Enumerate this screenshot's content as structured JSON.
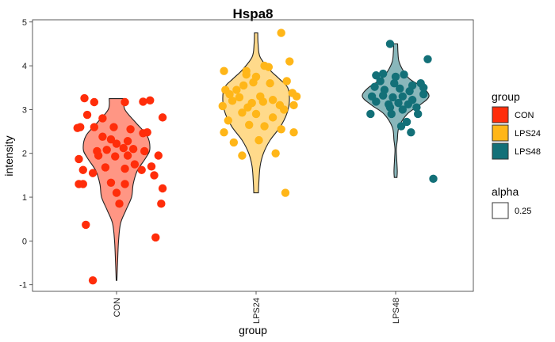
{
  "chart_data": {
    "type": "violin",
    "title": "Hspa8",
    "xlabel": "group",
    "ylabel": "intensity",
    "categories": [
      "CON",
      "LPS24",
      "LPS48"
    ],
    "ylim": [
      -1.15,
      5.05
    ],
    "yticks": [
      -1,
      0,
      1,
      2,
      3,
      4,
      5
    ],
    "grid": false,
    "legend_position": "right",
    "colors": {
      "CON": "#ff2d0a",
      "LPS24": "#ffb618",
      "LPS48": "#137078"
    },
    "violin_alpha": 0.5,
    "series": [
      {
        "name": "CON",
        "violin": {
          "ymin": -0.9,
          "ymax": 3.25,
          "profile": [
            [
              -0.9,
              0.01
            ],
            [
              -0.5,
              0.03
            ],
            [
              0,
              0.06
            ],
            [
              0.4,
              0.12
            ],
            [
              0.7,
              0.28
            ],
            [
              1.0,
              0.45
            ],
            [
              1.3,
              0.5
            ],
            [
              1.6,
              0.62
            ],
            [
              1.9,
              0.88
            ],
            [
              2.1,
              1.0
            ],
            [
              2.4,
              0.92
            ],
            [
              2.7,
              0.58
            ],
            [
              3.0,
              0.25
            ],
            [
              3.25,
              0.22
            ]
          ]
        },
        "points": [
          [
            0.83,
            -0.9
          ],
          [
            0.78,
            0.37
          ],
          [
            1.28,
            0.08
          ],
          [
            0.77,
            3.26
          ],
          [
            0.84,
            3.17
          ],
          [
            1.19,
            3.18
          ],
          [
            1.24,
            3.21
          ],
          [
            1.33,
            2.82
          ],
          [
            1.06,
            3.17
          ],
          [
            0.72,
            2.58
          ],
          [
            0.74,
            2.6
          ],
          [
            0.79,
            2.88
          ],
          [
            0.84,
            2.6
          ],
          [
            0.98,
            2.6
          ],
          [
            1.1,
            2.55
          ],
          [
            1.19,
            2.46
          ],
          [
            1.22,
            2.48
          ],
          [
            0.9,
            2.38
          ],
          [
            0.96,
            2.32
          ],
          [
            1.08,
            2.28
          ],
          [
            1.0,
            2.22
          ],
          [
            0.86,
            2.05
          ],
          [
            0.93,
            2.08
          ],
          [
            1.05,
            2.12
          ],
          [
            1.12,
            2.1
          ],
          [
            1.2,
            2.05
          ],
          [
            0.87,
            1.95
          ],
          [
            0.99,
            1.93
          ],
          [
            1.08,
            1.95
          ],
          [
            1.3,
            1.95
          ],
          [
            0.76,
            1.62
          ],
          [
            0.83,
            1.55
          ],
          [
            0.92,
            1.68
          ],
          [
            1.06,
            1.65
          ],
          [
            1.18,
            1.62
          ],
          [
            1.25,
            1.7
          ],
          [
            0.96,
            1.33
          ],
          [
            1.06,
            1.3
          ],
          [
            1.27,
            1.5
          ],
          [
            1.33,
            1.2
          ],
          [
            0.73,
            1.3
          ],
          [
            0.76,
            1.3
          ],
          [
            1.0,
            1.1
          ],
          [
            1.02,
            0.85
          ],
          [
            1.32,
            0.85
          ],
          [
            0.9,
            2.8
          ],
          [
            0.73,
            1.87
          ],
          [
            1.13,
            1.75
          ]
        ]
      },
      {
        "name": "LPS24",
        "violin": {
          "ymin": 1.1,
          "ymax": 4.75,
          "profile": [
            [
              1.1,
              0.07
            ],
            [
              1.3,
              0.08
            ],
            [
              1.7,
              0.12
            ],
            [
              2.0,
              0.22
            ],
            [
              2.3,
              0.42
            ],
            [
              2.6,
              0.72
            ],
            [
              2.9,
              0.92
            ],
            [
              3.2,
              1.0
            ],
            [
              3.5,
              0.95
            ],
            [
              3.7,
              0.7
            ],
            [
              3.9,
              0.42
            ],
            [
              4.2,
              0.12
            ],
            [
              4.5,
              0.06
            ],
            [
              4.75,
              0.05
            ]
          ]
        },
        "points": [
          [
            1.77,
            3.88
          ],
          [
            1.91,
            3.55
          ],
          [
            1.98,
            3.62
          ],
          [
            2.06,
            4.0
          ],
          [
            2.09,
            3.97
          ],
          [
            2.24,
            4.1
          ],
          [
            2.18,
            4.75
          ],
          [
            1.93,
            3.88
          ],
          [
            1.81,
            3.35
          ],
          [
            1.83,
            3.2
          ],
          [
            1.88,
            3.28
          ],
          [
            1.97,
            3.15
          ],
          [
            2.05,
            3.18
          ],
          [
            2.12,
            3.22
          ],
          [
            2.26,
            3.38
          ],
          [
            2.29,
            3.3
          ],
          [
            1.76,
            3.08
          ],
          [
            1.9,
            2.93
          ],
          [
            2.0,
            2.9
          ],
          [
            2.12,
            2.82
          ],
          [
            2.2,
            3.0
          ],
          [
            2.17,
            3.1
          ],
          [
            1.8,
            2.75
          ],
          [
            1.95,
            2.65
          ],
          [
            2.06,
            2.62
          ],
          [
            2.18,
            2.55
          ],
          [
            2.27,
            2.48
          ],
          [
            1.77,
            2.48
          ],
          [
            1.84,
            2.25
          ],
          [
            2.02,
            2.3
          ],
          [
            2.14,
            2.0
          ],
          [
            1.9,
            1.95
          ],
          [
            2.21,
            1.1
          ],
          [
            1.86,
            3.45
          ],
          [
            2.03,
            3.3
          ],
          [
            2.0,
            3.75
          ],
          [
            1.93,
            3.8
          ],
          [
            2.1,
            3.6
          ],
          [
            2.22,
            3.65
          ],
          [
            1.78,
            3.45
          ],
          [
            2.27,
            3.1
          ],
          [
            1.94,
            3.05
          ]
        ]
      },
      {
        "name": "LPS48",
        "violin": {
          "ymin": 1.45,
          "ymax": 4.5,
          "profile": [
            [
              1.45,
              0.04
            ],
            [
              1.6,
              0.05
            ],
            [
              1.9,
              0.03
            ],
            [
              2.1,
              0.02
            ],
            [
              2.3,
              0.05
            ],
            [
              2.6,
              0.1
            ],
            [
              2.9,
              0.35
            ],
            [
              3.1,
              0.72
            ],
            [
              3.3,
              1.0
            ],
            [
              3.5,
              0.82
            ],
            [
              3.7,
              0.42
            ],
            [
              3.9,
              0.22
            ],
            [
              4.1,
              0.1
            ],
            [
              4.3,
              0.07
            ],
            [
              4.5,
              0.06
            ]
          ]
        },
        "points": [
          [
            2.96,
            4.5
          ],
          [
            3.23,
            4.15
          ],
          [
            3.27,
            1.42
          ],
          [
            2.86,
            3.78
          ],
          [
            2.91,
            3.82
          ],
          [
            3.0,
            3.75
          ],
          [
            3.06,
            3.8
          ],
          [
            3.12,
            3.55
          ],
          [
            3.18,
            3.6
          ],
          [
            2.85,
            3.52
          ],
          [
            2.92,
            3.45
          ],
          [
            3.03,
            3.48
          ],
          [
            3.1,
            3.42
          ],
          [
            2.83,
            3.3
          ],
          [
            2.91,
            3.32
          ],
          [
            2.98,
            3.28
          ],
          [
            3.05,
            3.3
          ],
          [
            3.12,
            3.22
          ],
          [
            3.2,
            3.35
          ],
          [
            2.86,
            3.18
          ],
          [
            2.95,
            3.12
          ],
          [
            3.02,
            3.15
          ],
          [
            3.09,
            3.12
          ],
          [
            3.15,
            3.05
          ],
          [
            2.96,
            3.05
          ],
          [
            3.05,
            3.0
          ],
          [
            2.82,
            2.9
          ],
          [
            2.97,
            2.9
          ],
          [
            3.08,
            2.72
          ],
          [
            3.16,
            2.9
          ],
          [
            3.04,
            2.62
          ],
          [
            3.11,
            2.48
          ],
          [
            3.2,
            3.5
          ],
          [
            2.89,
            3.65
          ],
          [
            2.99,
            3.6
          ]
        ]
      }
    ],
    "legends": [
      {
        "title": "group",
        "entries": [
          "CON",
          "LPS24",
          "LPS48"
        ]
      },
      {
        "title": "alpha",
        "entries": [
          "0.25"
        ]
      }
    ]
  }
}
